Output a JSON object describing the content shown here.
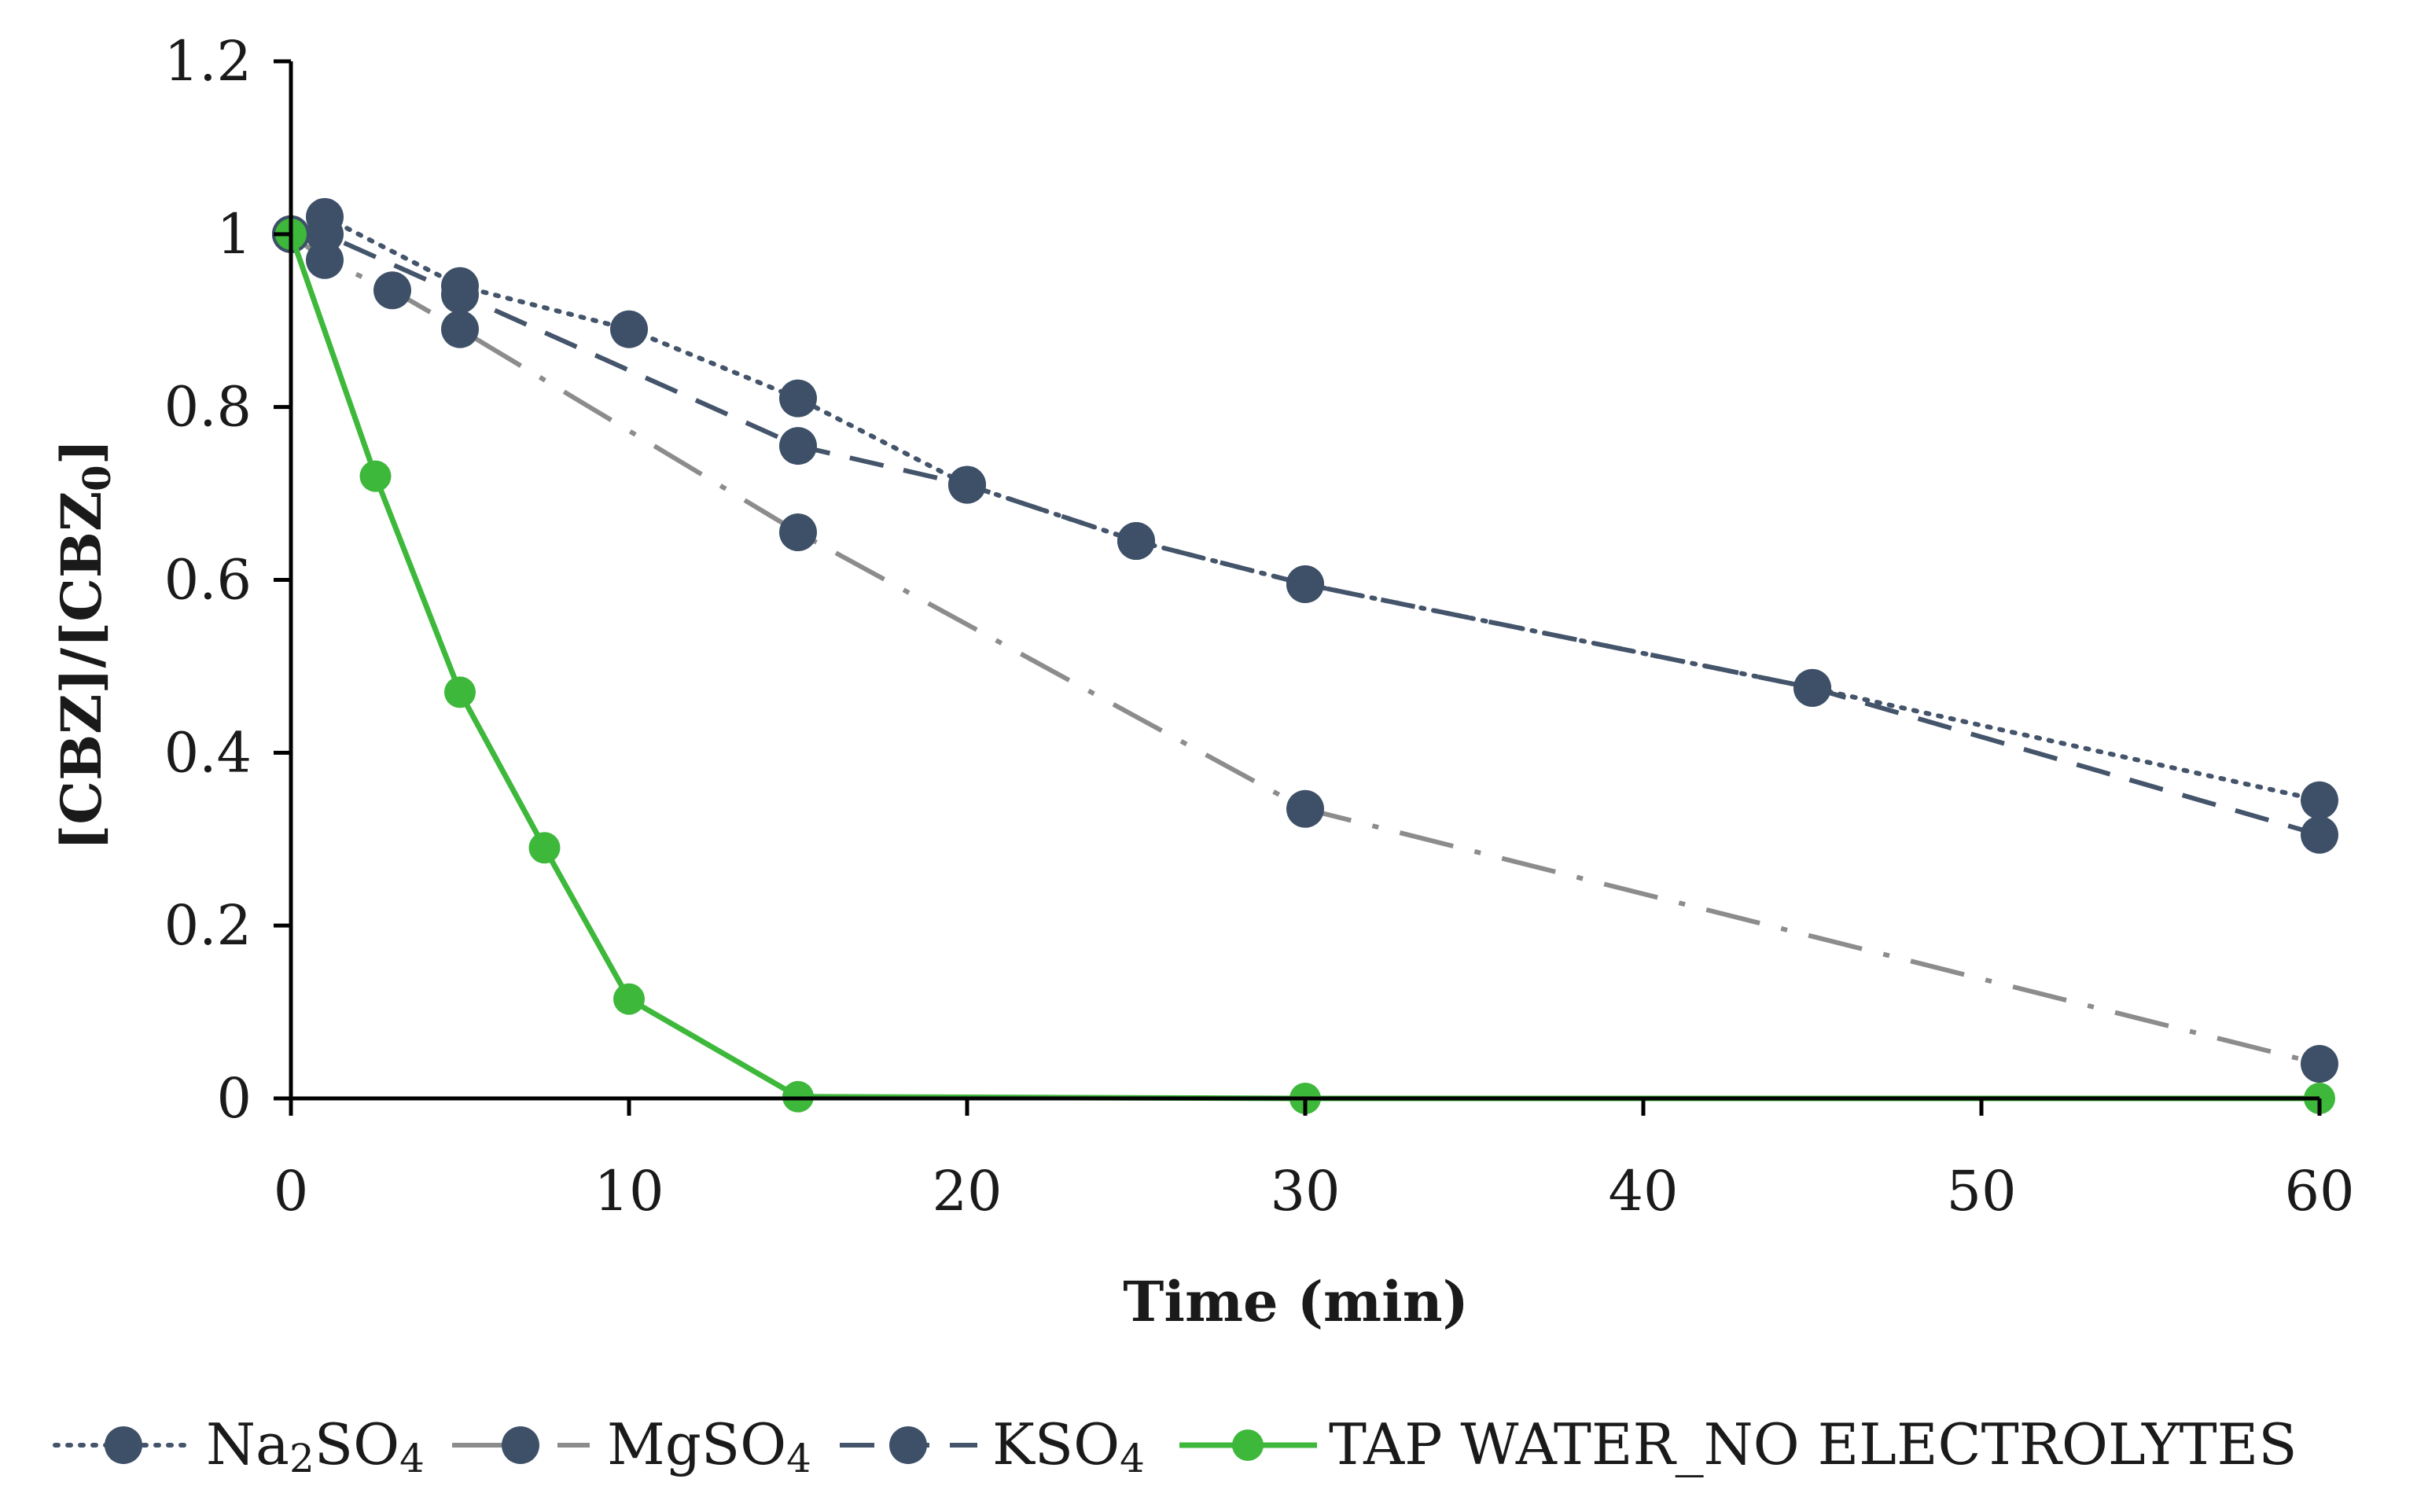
{
  "chart_data": {
    "type": "line",
    "title": "",
    "xlabel": "Time (min)",
    "ylabel_main": "[CBZ]/[CBZ",
    "ylabel_sub": "0",
    "ylabel_tail": "]",
    "xlim": [
      0,
      60
    ],
    "ylim": [
      0,
      1.2
    ],
    "x_ticks": [
      0,
      10,
      20,
      30,
      40,
      50,
      60
    ],
    "x_tick_labels": [
      "0",
      "10",
      "20",
      "30",
      "40",
      "50",
      "60"
    ],
    "y_ticks": [
      0,
      0.2,
      0.4,
      0.6,
      0.8,
      1.0,
      1.2
    ],
    "y_tick_labels": [
      "0",
      "0.2",
      "0.4",
      "0.6",
      "0.8",
      "1",
      "1.2"
    ],
    "grid": false,
    "legend_position": "bottom",
    "series": [
      {
        "name": "Na2SO4",
        "label_parts": [
          [
            "Na",
            false
          ],
          [
            "2",
            true
          ],
          [
            "SO",
            false
          ],
          [
            "4",
            true
          ]
        ],
        "style": "dotted",
        "color": "#44546a",
        "marker_color": "#3e5068",
        "x": [
          0,
          1,
          5,
          10,
          15,
          20,
          25,
          30,
          45,
          60
        ],
        "y": [
          1.0,
          1.02,
          0.94,
          0.89,
          0.81,
          0.71,
          0.645,
          0.595,
          0.475,
          0.345
        ]
      },
      {
        "name": "MgSO4",
        "label_parts": [
          [
            "MgSO",
            false
          ],
          [
            "4",
            true
          ]
        ],
        "style": "dashdot",
        "color": "#8c8c8c",
        "marker_color": "#3e5068",
        "x": [
          0,
          1,
          3,
          5,
          15,
          30,
          60
        ],
        "y": [
          1.0,
          0.97,
          0.935,
          0.89,
          0.655,
          0.335,
          0.04
        ]
      },
      {
        "name": "KSO4",
        "label_parts": [
          [
            "KSO",
            false
          ],
          [
            "4",
            true
          ]
        ],
        "style": "dashed",
        "color": "#44546a",
        "marker_color": "#3e5068",
        "x": [
          0,
          1,
          5,
          15,
          20,
          25,
          30,
          45,
          60
        ],
        "y": [
          1.0,
          1.0,
          0.93,
          0.755,
          0.71,
          0.645,
          0.595,
          0.475,
          0.305
        ]
      },
      {
        "name": "TAP WATER_NO ELECTROLYTES",
        "label_parts": [
          [
            "TAP WATER_NO ELECTROLYTES",
            false
          ]
        ],
        "style": "solid",
        "color": "#3db83a",
        "marker_color": "#3db83a",
        "x": [
          0,
          2.5,
          5,
          7.5,
          10,
          15,
          30,
          60
        ],
        "y": [
          1.0,
          0.72,
          0.47,
          0.29,
          0.115,
          0.002,
          0.0,
          0.0
        ]
      }
    ]
  }
}
